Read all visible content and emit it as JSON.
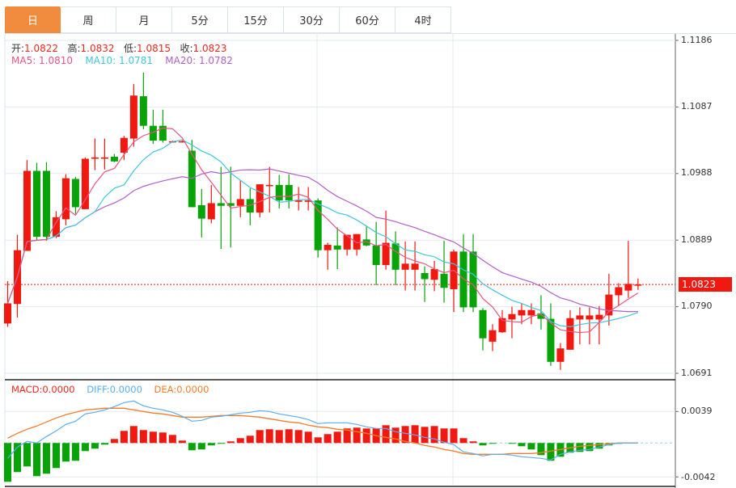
{
  "tabs": [
    {
      "label": "日",
      "active": true
    },
    {
      "label": "周",
      "active": false
    },
    {
      "label": "月",
      "active": false
    },
    {
      "label": "5分",
      "active": false
    },
    {
      "label": "15分",
      "active": false
    },
    {
      "label": "30分",
      "active": false
    },
    {
      "label": "60分",
      "active": false
    },
    {
      "label": "4时",
      "active": false
    }
  ],
  "ohlc_info": {
    "open_label": "开:",
    "open": "1.0822",
    "high_label": "高:",
    "high": "1.0832",
    "low_label": "低:",
    "low": "1.0815",
    "close_label": "收:",
    "close": "1.0823"
  },
  "ma_info": {
    "ma5": "MA5: 1.0810",
    "ma10": "MA10: 1.0781",
    "ma20": "MA20: 1.0782"
  },
  "macd_info": {
    "macd": "MACD:0.0000",
    "diff": "DIFF:0.0000",
    "dea": "DEA:0.0000"
  },
  "price_axis": [
    "1.1186",
    "1.1087",
    "1.0988",
    "1.0889",
    "1.0790",
    "1.0691"
  ],
  "macd_axis": [
    "0.0039",
    "-0.0042"
  ],
  "current_price": "1.0823",
  "colors": {
    "up": "#f1180f",
    "down": "#07a307",
    "ma5": "#e9557e",
    "ma10": "#3fc6dc",
    "ma20": "#b35ec9",
    "diff": "#5aaef0",
    "dea": "#f57c2a",
    "accent": "#f18c3f"
  },
  "chart_data": {
    "type": "candlestick",
    "ylim": [
      1.0691,
      1.1186
    ],
    "macd_ylim": [
      -0.0042,
      0.0039
    ],
    "candles": [
      [
        1.0765,
        1.0795,
        1.0828,
        1.076
      ],
      [
        1.0794,
        1.0874,
        1.0897,
        1.0774
      ],
      [
        1.0873,
        1.0992,
        1.1008,
        1.0873
      ],
      [
        1.0992,
        1.0894,
        1.1004,
        1.0888
      ],
      [
        1.0992,
        1.0894,
        1.1005,
        1.0888
      ],
      [
        1.0894,
        1.0923,
        1.0932,
        1.0892
      ],
      [
        1.092,
        1.0981,
        1.0987,
        1.0911
      ],
      [
        1.098,
        1.0938,
        1.0983,
        1.0928
      ],
      [
        1.0935,
        1.101,
        1.1012,
        1.0935
      ],
      [
        1.101,
        1.1012,
        1.104,
        1.0993
      ],
      [
        1.101,
        1.1012,
        1.104,
        1.0994
      ],
      [
        1.1013,
        1.1006,
        1.1017,
        1.1005
      ],
      [
        1.1019,
        1.1041,
        1.1044,
        1.1008
      ],
      [
        1.104,
        1.1104,
        1.1121,
        1.1028
      ],
      [
        1.1103,
        1.1059,
        1.1138,
        1.1054
      ],
      [
        1.1059,
        1.1037,
        1.1083,
        1.1032
      ],
      [
        1.1059,
        1.1037,
        1.1083,
        1.1034
      ],
      [
        1.1035,
        1.1036,
        1.1037,
        1.1034
      ],
      [
        1.1035,
        1.1036,
        1.1037,
        1.1034
      ],
      [
        1.1022,
        1.0938,
        1.1038,
        1.0938
      ],
      [
        1.0941,
        1.0921,
        1.0965,
        1.0893
      ],
      [
        1.092,
        1.0944,
        1.0971,
        1.0914
      ],
      [
        1.0944,
        1.094,
        1.0998,
        1.0876
      ],
      [
        1.0944,
        1.094,
        1.0998,
        1.0878
      ],
      [
        1.094,
        1.095,
        1.0978,
        1.0923
      ],
      [
        1.095,
        1.093,
        1.0966,
        1.0911
      ],
      [
        1.093,
        1.0972,
        1.0972,
        1.0923
      ],
      [
        1.097,
        1.0971,
        1.0998,
        1.093
      ],
      [
        1.0971,
        1.0948,
        1.0986,
        1.0936
      ],
      [
        1.0971,
        1.0948,
        1.0987,
        1.0936
      ],
      [
        1.0946,
        1.0948,
        1.0968,
        1.0933
      ],
      [
        1.0946,
        1.0948,
        1.0968,
        1.0933
      ],
      [
        1.0948,
        1.0874,
        1.0951,
        1.0863
      ],
      [
        1.0874,
        1.0882,
        1.0885,
        1.0845
      ],
      [
        1.0881,
        1.0875,
        1.0908,
        1.0846
      ],
      [
        1.0875,
        1.0897,
        1.0897,
        1.0866
      ],
      [
        1.0875,
        1.0898,
        1.0898,
        1.0866
      ],
      [
        1.089,
        1.0881,
        1.091,
        1.088
      ],
      [
        1.0881,
        1.0852,
        1.0916,
        1.0822
      ],
      [
        1.0852,
        1.0885,
        1.0933,
        1.0845
      ],
      [
        1.0884,
        1.0845,
        1.0902,
        1.0822
      ],
      [
        1.0845,
        1.0854,
        1.0887,
        1.0814
      ],
      [
        1.0845,
        1.0854,
        1.0887,
        1.0814
      ],
      [
        1.084,
        1.0831,
        1.085,
        1.0797
      ],
      [
        1.083,
        1.0846,
        1.0858,
        1.0813
      ],
      [
        1.0839,
        1.0818,
        1.0888,
        1.0796
      ],
      [
        1.0816,
        1.0872,
        1.0875,
        1.0782
      ],
      [
        1.0872,
        1.0789,
        1.0898,
        1.0782
      ],
      [
        1.0872,
        1.0789,
        1.0898,
        1.0782
      ],
      [
        1.0785,
        1.0743,
        1.0788,
        1.0725
      ],
      [
        1.0738,
        1.0755,
        1.0764,
        1.0724
      ],
      [
        1.0752,
        1.0773,
        1.0785,
        1.0751
      ],
      [
        1.0771,
        1.0779,
        1.079,
        1.0743
      ],
      [
        1.0777,
        1.0785,
        1.0795,
        1.0764
      ],
      [
        1.0777,
        1.0785,
        1.0795,
        1.0764
      ],
      [
        1.078,
        1.0772,
        1.0807,
        1.0756
      ],
      [
        1.0772,
        1.0708,
        1.0795,
        1.0702
      ],
      [
        1.0708,
        1.0728,
        1.0736,
        1.0696
      ],
      [
        1.0726,
        1.0773,
        1.0785,
        1.0726
      ],
      [
        1.0771,
        1.0777,
        1.0789,
        1.0734
      ],
      [
        1.0771,
        1.0777,
        1.0789,
        1.0734
      ],
      [
        1.0771,
        1.0778,
        1.0791,
        1.0734
      ],
      [
        1.0777,
        1.0808,
        1.0839,
        1.0762
      ],
      [
        1.0807,
        1.0819,
        1.0825,
        1.0791
      ],
      [
        1.0814,
        1.0824,
        1.0888,
        1.0803
      ],
      [
        1.0822,
        1.0823,
        1.0832,
        1.0815
      ]
    ],
    "macd": [
      -0.0048,
      -0.0036,
      -0.0029,
      -0.0041,
      -0.0038,
      -0.0031,
      -0.0023,
      -0.0022,
      -0.001,
      -0.0007,
      -0.0002,
      0.0005,
      0.0015,
      0.0021,
      0.0016,
      0.0014,
      0.0013,
      0.001,
      0.0003,
      -0.0009,
      -0.0008,
      -0.0003,
      -0.0001,
      0.0002,
      0.0006,
      0.0009,
      0.0016,
      0.0017,
      0.0016,
      0.0017,
      0.0016,
      0.0014,
      0.0007,
      0.0011,
      0.0014,
      0.0018,
      0.0019,
      0.0018,
      0.0018,
      0.0022,
      0.0019,
      0.0021,
      0.0022,
      0.002,
      0.0021,
      0.0018,
      0.0018,
      0.0006,
      0.0002,
      -0.0003,
      -0.0001,
      0,
      -0.0001,
      -0.0004,
      -0.0008,
      -0.0015,
      -0.0022,
      -0.0017,
      -0.0012,
      -0.0011,
      -0.001,
      -0.0007,
      -0.0003,
      -0.0001,
      0,
      0
    ],
    "diff": [
      -0.0019,
      -0.0005,
      0.0002,
      0,
      0.0008,
      0.0015,
      0.0023,
      0.0027,
      0.0036,
      0.0038,
      0.0041,
      0.0045,
      0.005,
      0.0052,
      0.0046,
      0.0043,
      0.0041,
      0.0038,
      0.0033,
      0.0027,
      0.0028,
      0.0032,
      0.0033,
      0.0035,
      0.0037,
      0.0038,
      0.004,
      0.0039,
      0.0036,
      0.0034,
      0.0032,
      0.0029,
      0.0024,
      0.0025,
      0.0025,
      0.0025,
      0.0023,
      0.002,
      0.0018,
      0.0018,
      0.0014,
      0.0012,
      0.001,
      0.0007,
      0.0005,
      0.0001,
      -0.0002,
      -0.0011,
      -0.0013,
      -0.0016,
      -0.0014,
      -0.0014,
      -0.0015,
      -0.0017,
      -0.0018,
      -0.0019,
      -0.0021,
      -0.0014,
      -0.0011,
      -0.0009,
      -0.0008,
      -0.0005,
      -0.0002,
      0,
      0,
      0
    ],
    "dea": [
      0.0006,
      0.0012,
      0.0017,
      0.0021,
      0.0026,
      0.0031,
      0.0035,
      0.0038,
      0.0041,
      0.0042,
      0.0043,
      0.0043,
      0.0043,
      0.0041,
      0.0039,
      0.0037,
      0.0036,
      0.0034,
      0.0032,
      0.0032,
      0.0032,
      0.0033,
      0.0034,
      0.0034,
      0.0034,
      0.0033,
      0.0032,
      0.003,
      0.0028,
      0.0026,
      0.0025,
      0.0022,
      0.002,
      0.0019,
      0.0017,
      0.0016,
      0.0014,
      0.0012,
      0.0009,
      0.0007,
      0.0005,
      0.0002,
      0,
      -0.0003,
      -0.0005,
      -0.0008,
      -0.001,
      -0.0013,
      -0.0014,
      -0.0014,
      -0.0014,
      -0.0014,
      -0.0013,
      -0.0013,
      -0.0013,
      -0.0012,
      -0.001,
      -0.0008,
      -0.0006,
      -0.0004,
      -0.0003,
      -0.0002,
      -0.0001,
      0,
      0,
      0
    ]
  }
}
